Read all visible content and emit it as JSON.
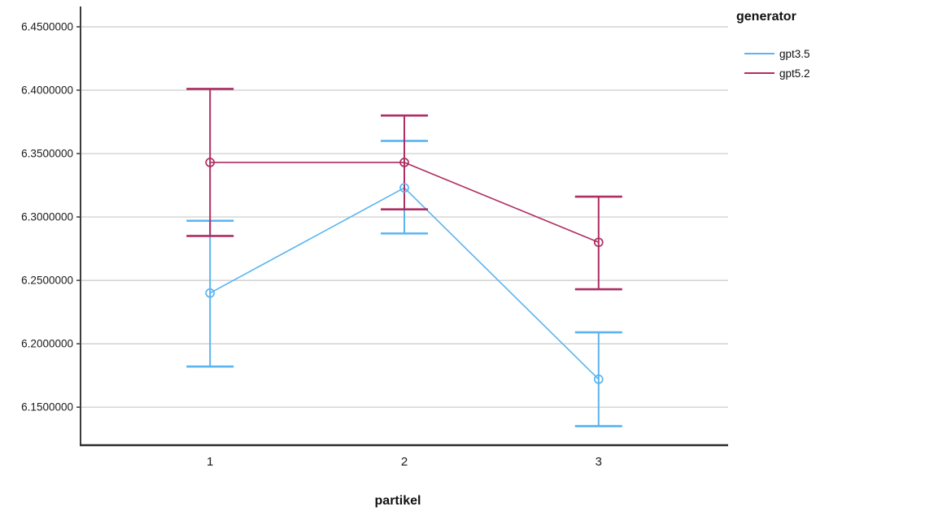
{
  "chart_data": {
    "type": "line",
    "subtype": "means-with-error-bars",
    "title": "",
    "xlabel": "partikel",
    "ylabel": "",
    "categories": [
      "1",
      "2",
      "3"
    ],
    "ylim": [
      6.12,
      6.466
    ],
    "grid": true,
    "yticks": [
      {
        "value": 6.45,
        "label": "6.4500000"
      },
      {
        "value": 6.4,
        "label": "6.4000000"
      },
      {
        "value": 6.35,
        "label": "6.3500000"
      },
      {
        "value": 6.3,
        "label": "6.3000000"
      },
      {
        "value": 6.25,
        "label": "6.2500000"
      },
      {
        "value": 6.2,
        "label": "6.2000000"
      },
      {
        "value": 6.15,
        "label": "6.1500000"
      }
    ],
    "legend": {
      "title": "generator",
      "position": "right-top"
    },
    "series": [
      {
        "name": "gpt3.5",
        "color": "#5AB4F0",
        "means": [
          6.24,
          6.323,
          6.172
        ],
        "ci_low": [
          6.182,
          6.287,
          6.135
        ],
        "ci_high": [
          6.297,
          6.36,
          6.209
        ]
      },
      {
        "name": "gpt5.2",
        "color": "#AE2D62",
        "means": [
          6.343,
          6.343,
          6.28
        ],
        "ci_low": [
          6.285,
          6.306,
          6.243
        ],
        "ci_high": [
          6.401,
          6.38,
          6.316
        ]
      }
    ],
    "colors": {
      "grid": "#C9C9C9",
      "y_axis": "#3C3C3C",
      "x_axis": "#2B2B2B",
      "tick_text": "#1A1A1A",
      "background": "#FFFFFF"
    }
  }
}
